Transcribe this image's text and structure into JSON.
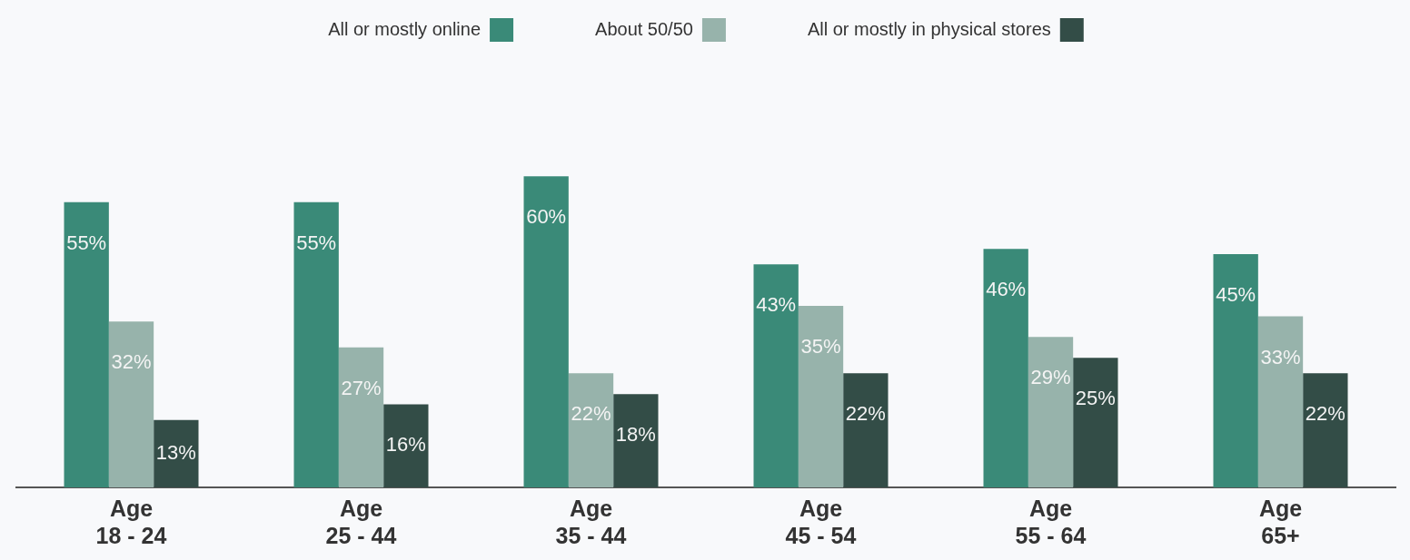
{
  "chart_data": {
    "type": "bar",
    "categories": [
      "Age 18 - 24",
      "Age 25 - 44",
      "Age 35 - 44",
      "Age 45 - 54",
      "Age 55 - 64",
      "Age 65+"
    ],
    "series": [
      {
        "name": "All or mostly online",
        "color": "#3a8a78",
        "values": [
          55,
          55,
          60,
          43,
          46,
          45
        ],
        "value_labels": [
          "55%",
          "55%",
          "60%",
          "43%",
          "46%",
          "45%"
        ]
      },
      {
        "name": "About 50/50",
        "color": "#97b3ab",
        "values": [
          32,
          27,
          22,
          35,
          29,
          33
        ],
        "value_labels": [
          "32%",
          "27%",
          "22%",
          "35%",
          "29%",
          "33%"
        ]
      },
      {
        "name": "All or mostly in physical stores",
        "color": "#334d47",
        "values": [
          13,
          16,
          18,
          22,
          25,
          22
        ],
        "value_labels": [
          "13%",
          "16%",
          "18%",
          "22%",
          "25%",
          "22%"
        ]
      }
    ],
    "tick_labels": "x",
    "grid": false,
    "legend": "top"
  }
}
